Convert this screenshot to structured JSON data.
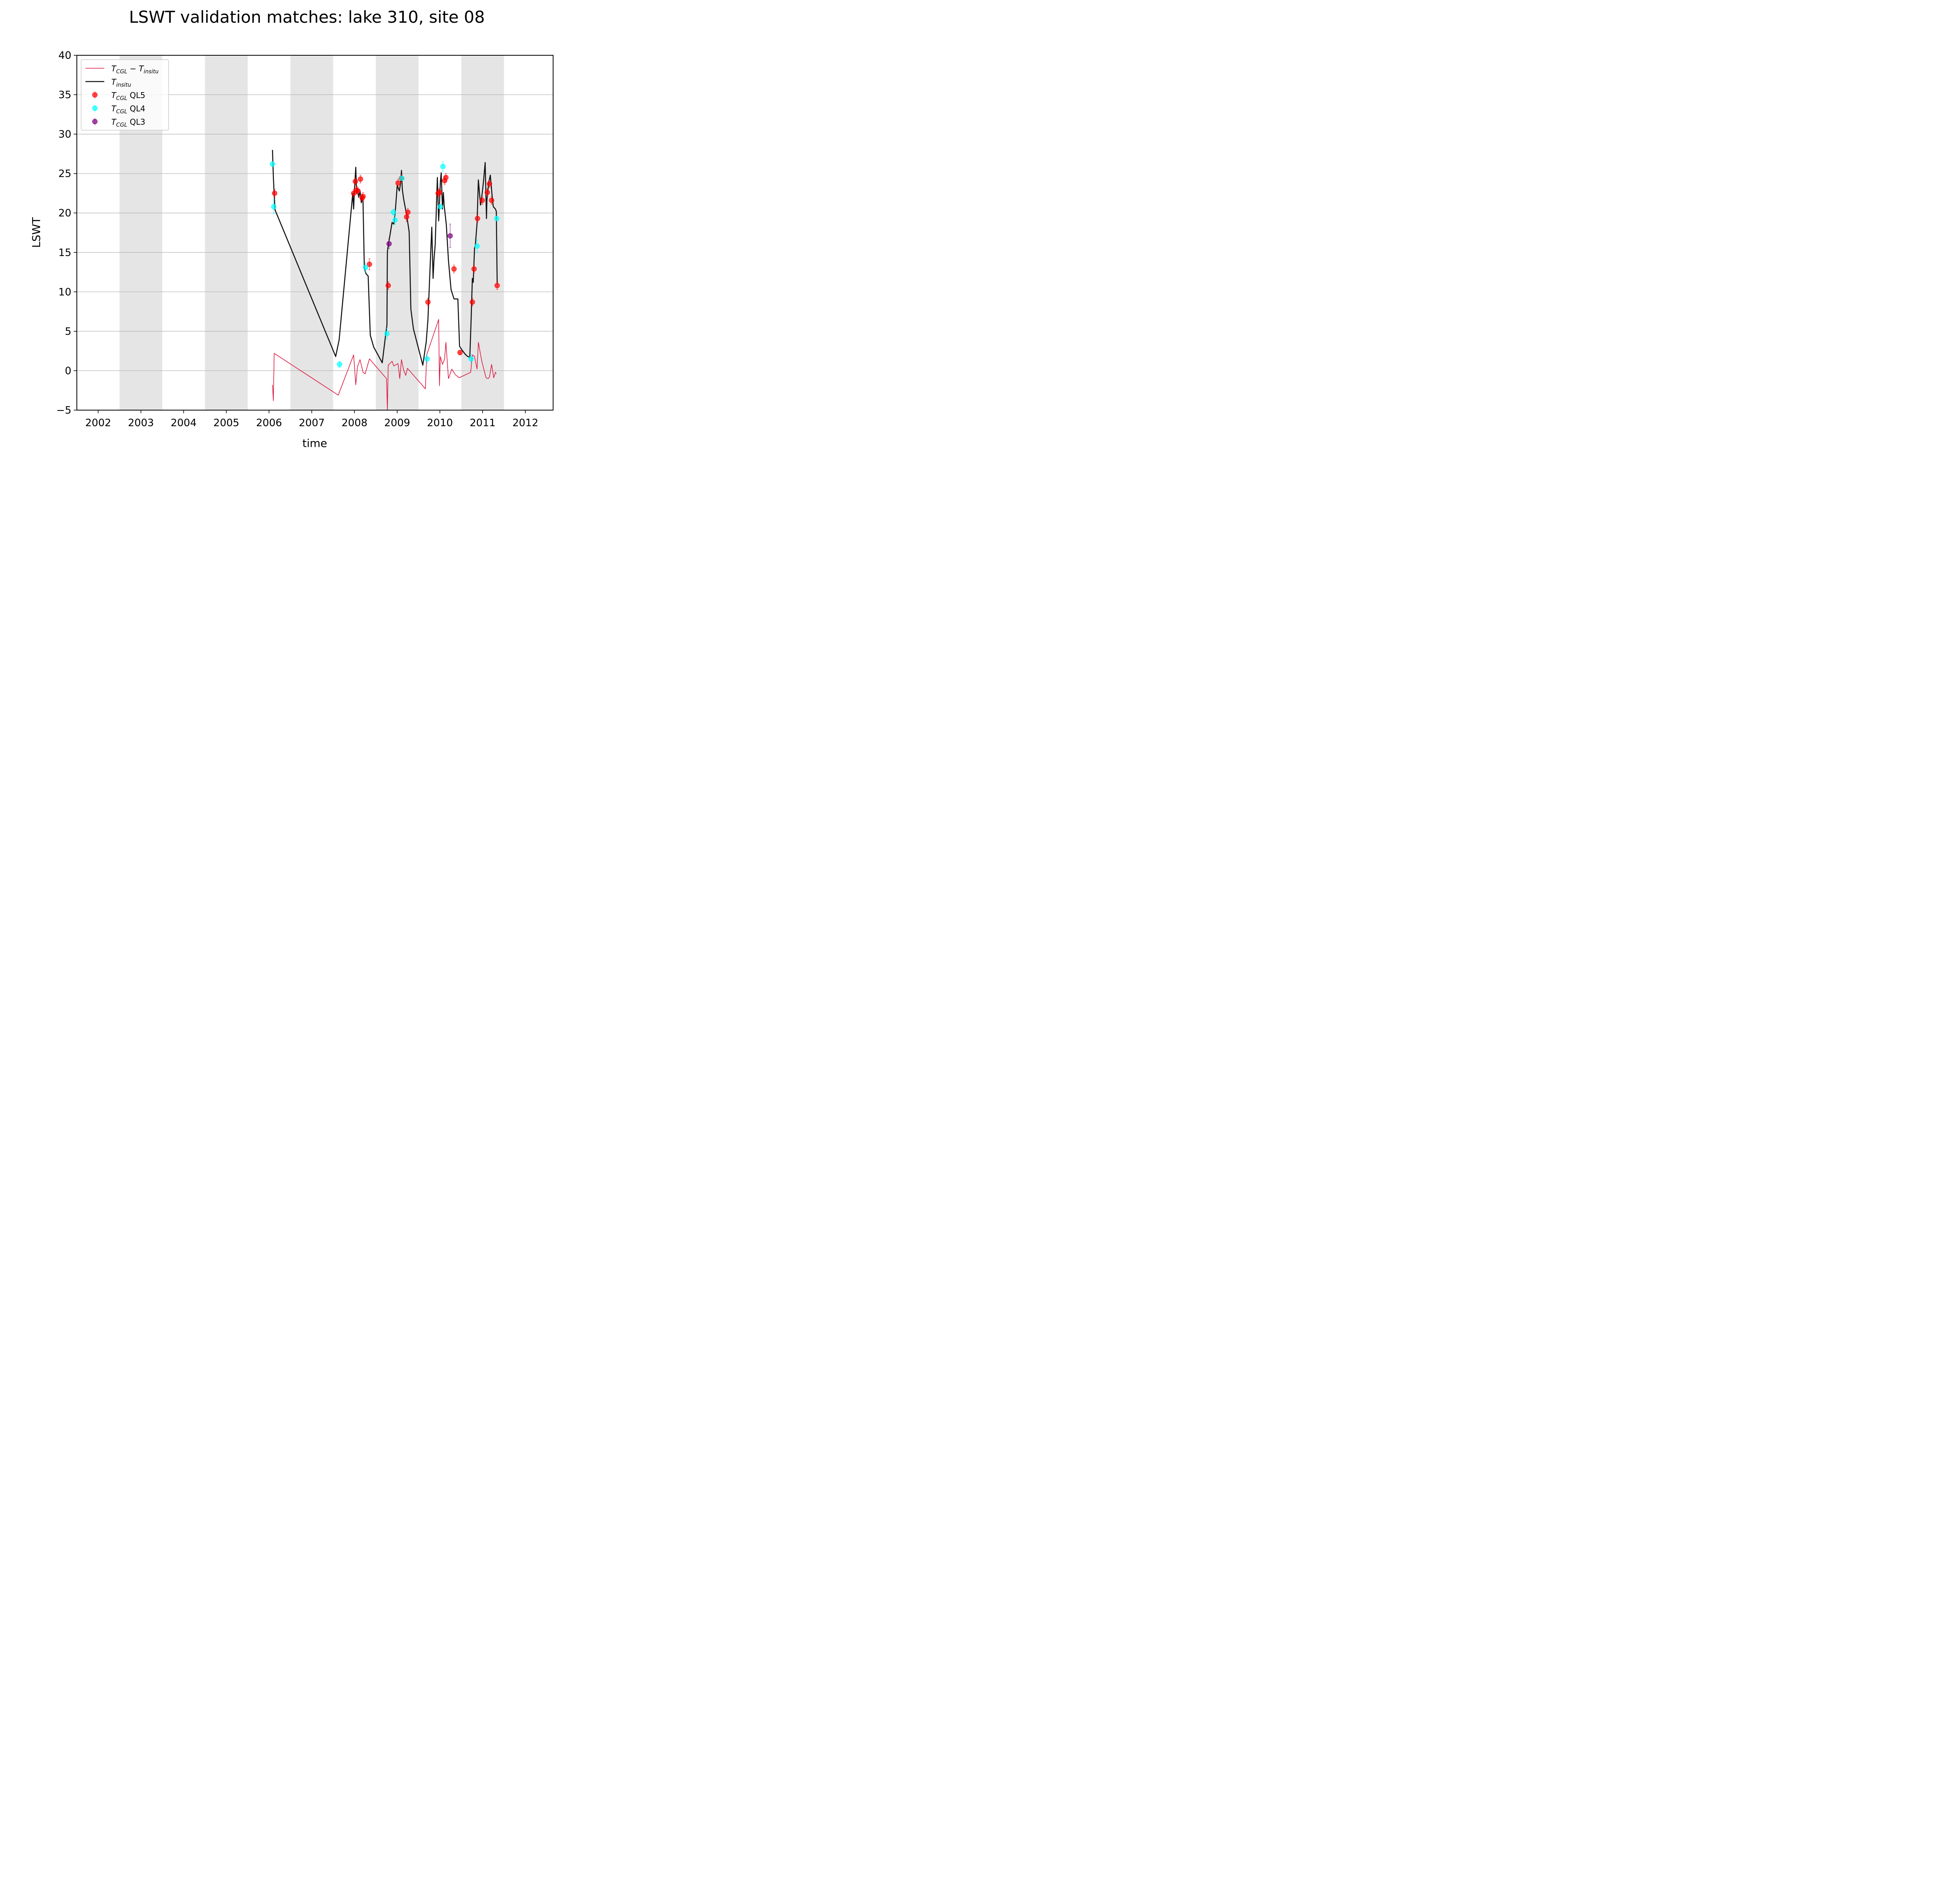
{
  "chart_data": {
    "type": "line",
    "title": "LSWT validation matches: lake 310, site 08",
    "xlabel": "time",
    "ylabel": "LSWT",
    "xlim": [
      2001.5,
      2012.65
    ],
    "ylim": [
      -5,
      40
    ],
    "x_ticks": [
      2002,
      2003,
      2004,
      2005,
      2006,
      2007,
      2008,
      2009,
      2010,
      2011,
      2012
    ],
    "x_tick_labels": [
      "2002",
      "2003",
      "2004",
      "2005",
      "2006",
      "2007",
      "2008",
      "2009",
      "2010",
      "2011",
      "2012"
    ],
    "y_ticks": [
      -5,
      0,
      5,
      10,
      15,
      20,
      25,
      30,
      35,
      40
    ],
    "y_tick_labels": [
      "−5",
      "0",
      "5",
      "10",
      "15",
      "20",
      "25",
      "30",
      "35",
      "40"
    ],
    "grid": "horizontal",
    "shaded_bands": [
      [
        2002.5,
        2003.5
      ],
      [
        2004.5,
        2005.5
      ],
      [
        2006.5,
        2007.5
      ],
      [
        2008.5,
        2009.5
      ],
      [
        2010.5,
        2011.5
      ]
    ],
    "legend": {
      "placement": "upper left",
      "entries": [
        {
          "base": "T",
          "sub": "CGL",
          "mid": " − ",
          "base2": "T",
          "sub2": "insitu",
          "suffix": "",
          "kind": "line",
          "color": "#dc143c"
        },
        {
          "base": "T",
          "sub": "insitu",
          "mid": "",
          "base2": "",
          "sub2": "",
          "suffix": "",
          "kind": "line",
          "color": "#111111"
        },
        {
          "base": "T",
          "sub": "CGL",
          "mid": "",
          "base2": "",
          "sub2": "",
          "suffix": " QL5",
          "kind": "marker",
          "color": "#ff0000"
        },
        {
          "base": "T",
          "sub": "CGL",
          "mid": "",
          "base2": "",
          "sub2": "",
          "suffix": " QL4",
          "kind": "marker",
          "color": "#00ffff"
        },
        {
          "base": "T",
          "sub": "CGL",
          "mid": "",
          "base2": "",
          "sub2": "",
          "suffix": " QL3",
          "kind": "marker",
          "color": "#800080"
        }
      ]
    },
    "series": [
      {
        "key": "insitu",
        "kind": "line",
        "color": "#111111",
        "x": [
          2006.08,
          2006.1,
          2006.12,
          2006.14,
          2007.56,
          2007.64,
          2007.96,
          2007.98,
          2008.0,
          2008.03,
          2008.05,
          2008.07,
          2008.1,
          2008.13,
          2008.16,
          2008.18,
          2008.2,
          2008.23,
          2008.27,
          2008.32,
          2008.37,
          2008.45,
          2008.65,
          2008.74,
          2008.76,
          2008.77,
          2008.78,
          2008.8,
          2008.88,
          2008.92,
          2008.95,
          2009.0,
          2009.05,
          2009.08,
          2009.1,
          2009.12,
          2009.15,
          2009.22,
          2009.28,
          2009.32,
          2009.38,
          2009.6,
          2009.68,
          2009.72,
          2009.76,
          2009.81,
          2009.84,
          2009.86,
          2009.89,
          2009.94,
          2009.97,
          2009.99,
          2010.01,
          2010.03,
          2010.06,
          2010.08,
          2010.1,
          2010.12,
          2010.15,
          2010.2,
          2010.26,
          2010.33,
          2010.36,
          2010.42,
          2010.46,
          2010.52,
          2010.59,
          2010.65,
          2010.7,
          2010.73,
          2010.76,
          2010.78,
          2010.81,
          2010.83,
          2010.87,
          2010.9,
          2010.95,
          2010.99,
          2011.02,
          2011.06,
          2011.09,
          2011.1,
          2011.14,
          2011.18,
          2011.22,
          2011.25,
          2011.3,
          2011.32,
          2011.34
        ],
        "y": [
          28.0,
          24.6,
          22.4,
          20.4,
          1.8,
          3.9,
          22.5,
          20.5,
          23.0,
          25.8,
          22.5,
          23.0,
          22.0,
          22.8,
          21.3,
          22.2,
          21.4,
          13.0,
          12.3,
          12.0,
          4.5,
          3.0,
          1.0,
          5.0,
          5.8,
          15.0,
          15.5,
          16.2,
          18.8,
          18.6,
          19.8,
          23.5,
          22.8,
          23.8,
          25.4,
          23.0,
          21.8,
          19.8,
          17.6,
          7.8,
          5.3,
          0.7,
          3.7,
          6.5,
          11.8,
          18.2,
          11.7,
          14.0,
          16.0,
          24.5,
          19.0,
          21.1,
          23.9,
          25.1,
          20.5,
          22.6,
          20.9,
          20.0,
          18.5,
          14.0,
          10.3,
          9.1,
          9.1,
          9.1,
          3.1,
          2.6,
          2.1,
          1.8,
          1.7,
          6.4,
          11.7,
          11.2,
          15.5,
          16.0,
          18.7,
          24.2,
          21.0,
          22.5,
          24.0,
          26.4,
          19.3,
          21.6,
          23.8,
          24.8,
          22.3,
          20.8,
          20.5,
          20.2,
          11.0
        ]
      },
      {
        "key": "diff",
        "kind": "line",
        "color": "#dc143c",
        "x": [
          2006.08,
          2006.1,
          2006.12,
          2007.62,
          2007.98,
          2008.03,
          2008.07,
          2008.13,
          2008.2,
          2008.25,
          2008.35,
          2008.75,
          2008.77,
          2008.79,
          2008.88,
          2008.92,
          2009.02,
          2009.06,
          2009.1,
          2009.15,
          2009.2,
          2009.24,
          2009.66,
          2009.69,
          2009.97,
          2009.99,
          2010.01,
          2010.06,
          2010.11,
          2010.14,
          2010.2,
          2010.28,
          2010.36,
          2010.45,
          2010.72,
          2010.76,
          2010.81,
          2010.87,
          2010.9,
          2010.98,
          2011.08,
          2011.13,
          2011.16,
          2011.21,
          2011.26,
          2011.3,
          2011.32
        ],
        "y": [
          -1.8,
          -3.8,
          2.2,
          -3.1,
          2.0,
          -1.8,
          0.5,
          1.4,
          -0.2,
          -0.4,
          1.5,
          -1.0,
          -5.0,
          0.7,
          1.2,
          0.6,
          0.9,
          -1.0,
          1.4,
          0.1,
          -0.6,
          0.3,
          -2.3,
          2.0,
          6.5,
          -1.9,
          1.8,
          0.8,
          1.5,
          3.6,
          -1.0,
          0.2,
          -0.5,
          -0.9,
          -0.2,
          2.0,
          1.8,
          0.2,
          3.6,
          1.2,
          -0.9,
          -1.0,
          -0.8,
          0.8,
          -0.9,
          -0.2,
          -0.4
        ]
      },
      {
        "key": "ql5",
        "kind": "points",
        "color": "#ff0000",
        "x": [
          2006.13,
          2007.98,
          2008.02,
          2008.05,
          2008.08,
          2008.14,
          2008.18,
          2008.2,
          2008.35,
          2008.79,
          2009.02,
          2009.1,
          2009.22,
          2009.25,
          2009.72,
          2009.96,
          2009.99,
          2010.11,
          2010.14,
          2010.33,
          2010.47,
          2010.76,
          2010.8,
          2010.88,
          2010.99,
          2011.11,
          2011.16,
          2011.21,
          2011.34
        ],
        "y": [
          22.5,
          22.5,
          24.0,
          22.9,
          22.8,
          24.3,
          21.9,
          22.1,
          13.5,
          10.8,
          23.8,
          24.4,
          19.5,
          20.1,
          8.7,
          22.5,
          22.6,
          24.1,
          24.5,
          12.9,
          2.3,
          8.7,
          12.9,
          19.3,
          21.6,
          22.6,
          23.7,
          21.6,
          10.8
        ],
        "err": [
          0.5,
          0.5,
          0.5,
          0.5,
          0.5,
          0.5,
          0.5,
          0.5,
          0.7,
          0.5,
          0.5,
          0.5,
          0.6,
          0.5,
          0.5,
          0.5,
          0.5,
          0.5,
          0.5,
          0.5,
          0.3,
          0.5,
          0.5,
          0.5,
          0.5,
          0.5,
          0.5,
          0.5,
          0.5
        ]
      },
      {
        "key": "ql4",
        "kind": "points",
        "color": "#00ffff",
        "x": [
          2006.08,
          2006.11,
          2007.65,
          2008.26,
          2008.76,
          2008.91,
          2008.95,
          2009.11,
          2009.7,
          2010.01,
          2010.07,
          2010.73,
          2010.87,
          2011.33
        ],
        "y": [
          26.2,
          20.8,
          0.8,
          13.1,
          4.7,
          20.1,
          19.1,
          24.4,
          1.5,
          20.8,
          25.9,
          1.5,
          15.8,
          19.3
        ],
        "err": [
          0.3,
          0.9,
          0.4,
          0.6,
          0.7,
          0.4,
          0.6,
          0.3,
          0.6,
          0.3,
          0.6,
          0.6,
          0.8,
          0.3
        ]
      },
      {
        "key": "ql3",
        "kind": "points",
        "color": "#800080",
        "x": [
          2008.81,
          2010.24
        ],
        "y": [
          16.1,
          17.1
        ],
        "err": [
          0.6,
          1.5
        ]
      }
    ]
  }
}
